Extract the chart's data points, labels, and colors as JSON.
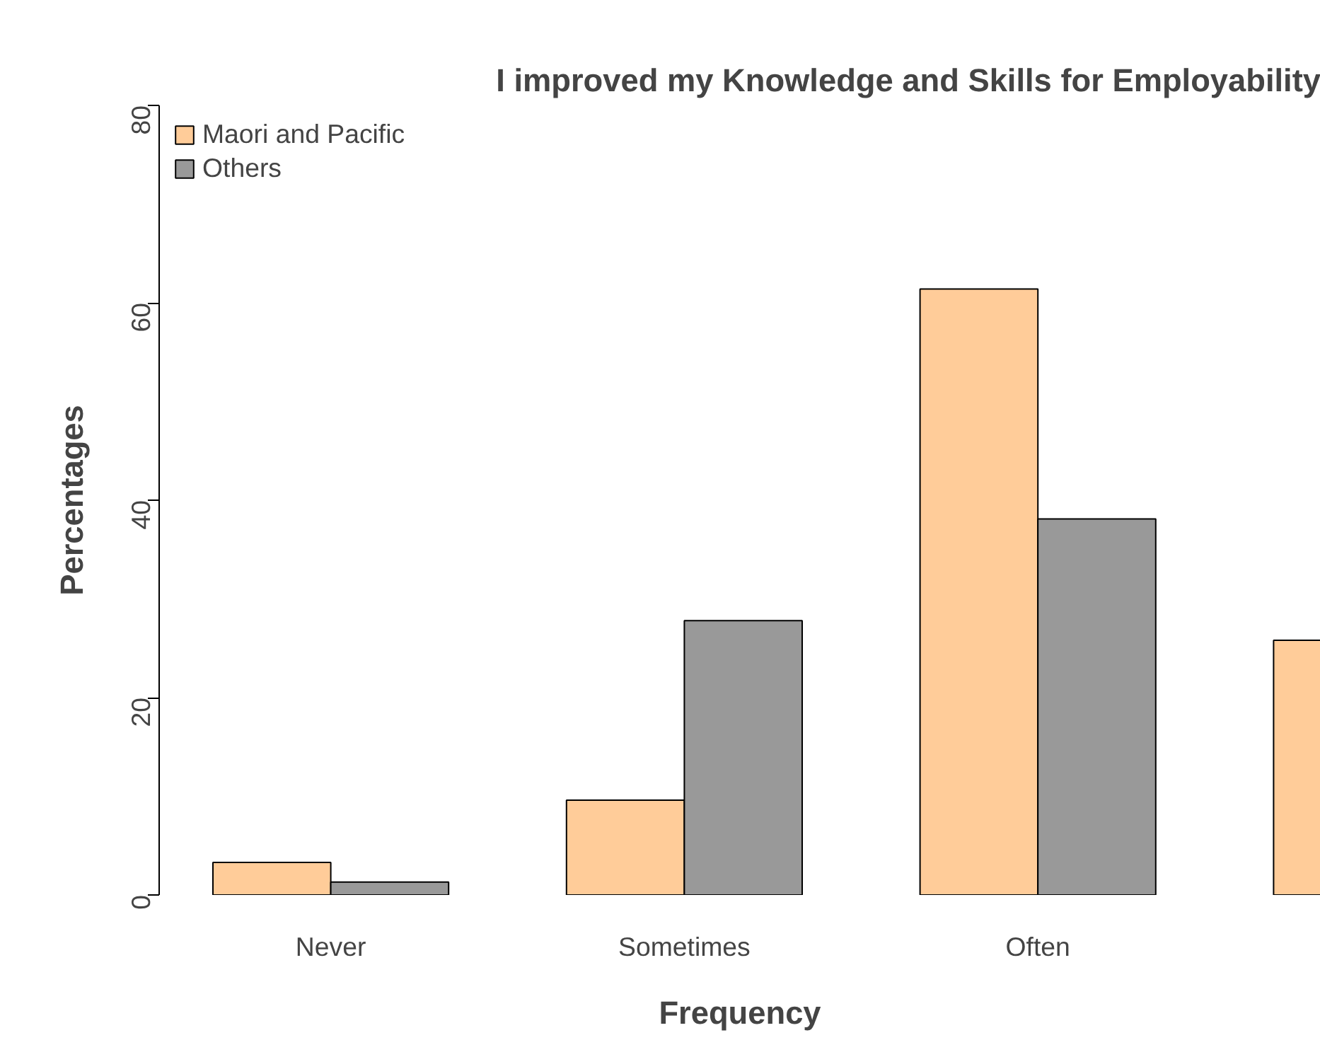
{
  "chart_data": {
    "type": "bar",
    "title": "I improved my Knowledge and Skills for Employability",
    "xlabel": "Frequency",
    "ylabel": "Percentages",
    "categories": [
      "Never",
      "Sometimes",
      "Often",
      null
    ],
    "series": [
      {
        "name": "Maori and Pacific",
        "color": "#ffcc99",
        "values": [
          3.3,
          9.6,
          61.4,
          25.8
        ]
      },
      {
        "name": "Others",
        "color": "#999999",
        "values": [
          1.3,
          27.8,
          38.1,
          null
        ]
      }
    ],
    "ylim": [
      0,
      80
    ],
    "yticks": [
      0,
      20,
      40,
      60,
      80
    ],
    "grid": false,
    "legend": "top left"
  }
}
